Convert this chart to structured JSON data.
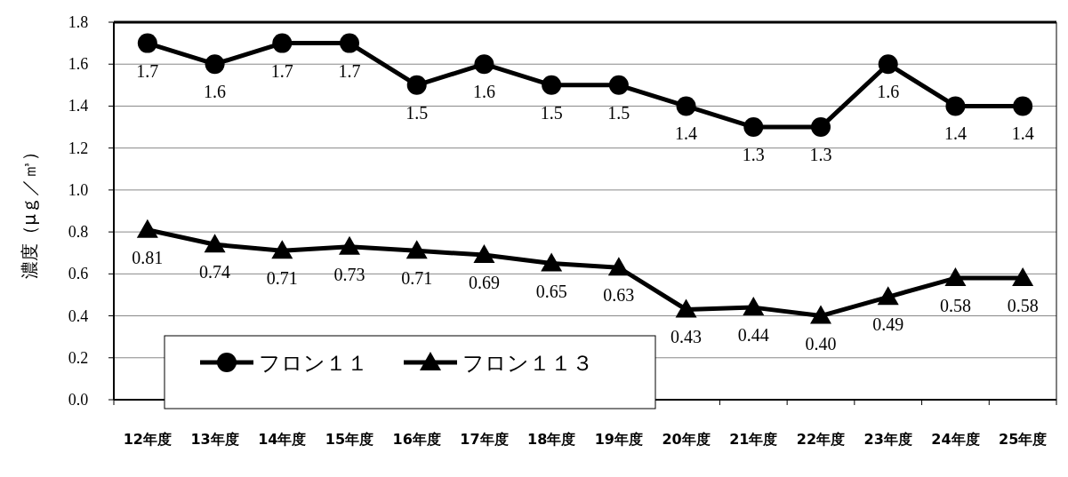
{
  "chart_data": {
    "type": "line",
    "ylabel": "濃度（μｇ／㎥）",
    "categories": [
      "12年度",
      "13年度",
      "14年度",
      "15年度",
      "16年度",
      "17年度",
      "18年度",
      "19年度",
      "20年度",
      "21年度",
      "22年度",
      "23年度",
      "24年度",
      "25年度"
    ],
    "ylim": [
      0,
      1.8
    ],
    "yticks": [
      {
        "value": 0,
        "label": "0.0"
      },
      {
        "value": 0.2,
        "label": "0.2"
      },
      {
        "value": 0.4,
        "label": "0.4"
      },
      {
        "value": 0.6,
        "label": "0.6"
      },
      {
        "value": 0.8,
        "label": "0.8"
      },
      {
        "value": 1,
        "label": "1.0"
      },
      {
        "value": 1.2,
        "label": "1.2"
      },
      {
        "value": 1.4,
        "label": "1.4"
      },
      {
        "value": 1.6,
        "label": "1.6"
      },
      {
        "value": 1.8,
        "label": "1.8"
      }
    ],
    "grid": "y",
    "legend": "bottom left",
    "line_style": "solid",
    "series": [
      {
        "name": "フロン１１",
        "color": "#000000",
        "marker": "circle",
        "values": [
          1.7,
          1.6,
          1.7,
          1.7,
          1.5,
          1.6,
          1.5,
          1.5,
          1.4,
          1.3,
          1.3,
          1.6,
          1.4,
          1.4
        ],
        "value_labels": [
          "1.7",
          "1.6",
          "1.7",
          "1.7",
          "1.5",
          "1.6",
          "1.5",
          "1.5",
          "1.4",
          "1.3",
          "1.3",
          "1.6",
          "1.4",
          "1.4"
        ]
      },
      {
        "name": "フロン１１３",
        "color": "#000000",
        "marker": "triangle",
        "values": [
          0.81,
          0.74,
          0.71,
          0.73,
          0.71,
          0.69,
          0.65,
          0.63,
          0.43,
          0.44,
          0.4,
          0.49,
          0.58,
          0.58
        ],
        "value_labels": [
          "0.81",
          "0.74",
          "0.71",
          "0.73",
          "0.71",
          "0.69",
          "0.65",
          "0.63",
          "0.43",
          "0.44",
          "0.40",
          "0.49",
          "0.58",
          "0.58"
        ]
      }
    ]
  }
}
